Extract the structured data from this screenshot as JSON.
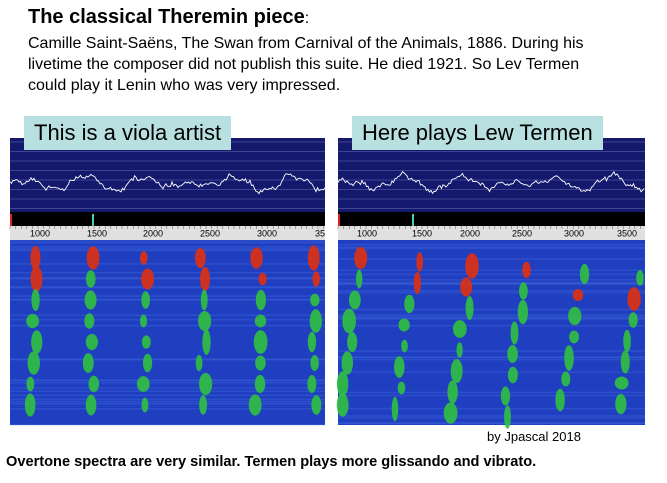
{
  "header": {
    "title": "The classical Theremin piece",
    "title_suffix": ":",
    "lines": [
      "Camille Saint-Saëns, The Swan from Carnival of the Animals, 1886. During his",
      "livetime the composer did not publish this suite. He died 1921. So Lev Termen",
      "could play it Lenin who was very impressed."
    ]
  },
  "panels": [
    {
      "label": "This is a viola artist",
      "ticks": [
        "1000",
        "1500",
        "2000",
        "2500",
        "3000",
        "35"
      ]
    },
    {
      "label": "Here plays Lew Termen",
      "ticks": [
        "1000",
        "1500",
        "2000",
        "2500",
        "3000",
        "3500"
      ]
    }
  ],
  "credit": "by Jpascal 2018",
  "caption": "Overtone spectra are very similar. Termen plays more glissando and vibrato."
}
